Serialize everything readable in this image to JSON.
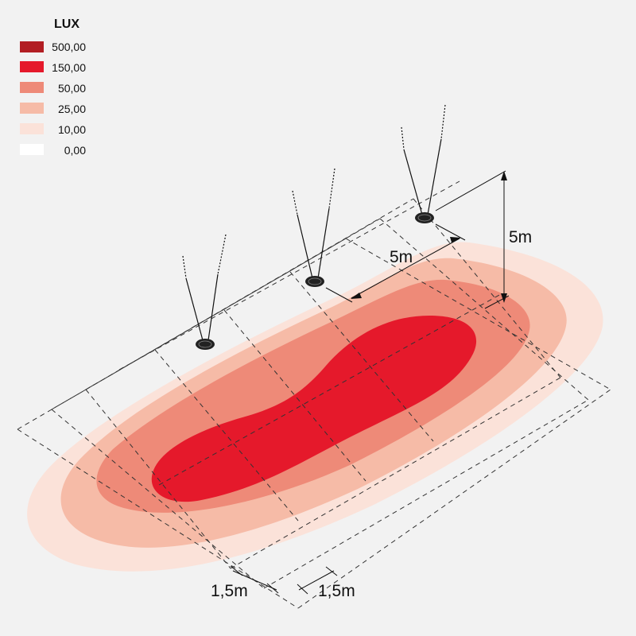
{
  "legend": {
    "title": "LUX",
    "items": [
      {
        "value": "500,00",
        "color": "#b21e23"
      },
      {
        "value": "150,00",
        "color": "#e5192b"
      },
      {
        "value": "50,00",
        "color": "#ee8a78"
      },
      {
        "value": "25,00",
        "color": "#f6bba7"
      },
      {
        "value": "10,00",
        "color": "#fbe2d9"
      },
      {
        "value": "0,00",
        "color": "#ffffff"
      }
    ]
  },
  "dimensions": {
    "height": "5m",
    "spacing": "5m",
    "grid_width_1": "1,5m",
    "grid_width_2": "1,5m"
  }
}
